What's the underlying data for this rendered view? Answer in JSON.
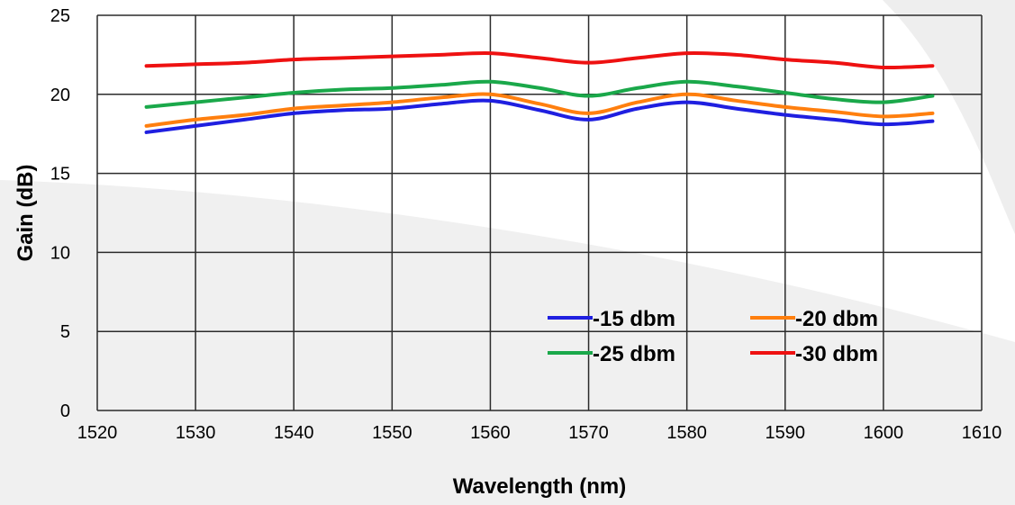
{
  "chart_data": {
    "type": "line",
    "title": "",
    "xlabel": "Wavelength (nm)",
    "ylabel": "Gain (dB)",
    "xlim": [
      1520,
      1610
    ],
    "ylim": [
      0,
      25
    ],
    "xticks": [
      1520,
      1530,
      1540,
      1550,
      1560,
      1570,
      1580,
      1590,
      1600,
      1610
    ],
    "yticks": [
      0,
      5,
      10,
      15,
      20,
      25
    ],
    "grid": true,
    "legend_position": "lower-right",
    "x": [
      1525,
      1530,
      1535,
      1540,
      1545,
      1550,
      1555,
      1560,
      1565,
      1570,
      1575,
      1580,
      1585,
      1590,
      1595,
      1600,
      1605
    ],
    "series": [
      {
        "name": "-15 dbm",
        "color": "#1f1fe0",
        "values": [
          17.6,
          18.0,
          18.4,
          18.8,
          19.0,
          19.1,
          19.4,
          19.6,
          19.0,
          18.4,
          19.1,
          19.5,
          19.1,
          18.7,
          18.4,
          18.1,
          18.3
        ]
      },
      {
        "name": "-20 dbm",
        "color": "#ff7f0e",
        "values": [
          18.0,
          18.4,
          18.7,
          19.1,
          19.3,
          19.5,
          19.8,
          20.0,
          19.4,
          18.8,
          19.5,
          20.0,
          19.6,
          19.2,
          18.9,
          18.6,
          18.8
        ]
      },
      {
        "name": "-25 dbm",
        "color": "#1aa84a",
        "values": [
          19.2,
          19.5,
          19.8,
          20.1,
          20.3,
          20.4,
          20.6,
          20.8,
          20.4,
          19.9,
          20.4,
          20.8,
          20.5,
          20.1,
          19.7,
          19.5,
          19.9
        ]
      },
      {
        "name": "-30 dbm",
        "color": "#ee1111",
        "values": [
          21.8,
          21.9,
          22.0,
          22.2,
          22.3,
          22.4,
          22.5,
          22.6,
          22.3,
          22.0,
          22.3,
          22.6,
          22.5,
          22.2,
          22.0,
          21.7,
          21.8
        ]
      }
    ]
  }
}
